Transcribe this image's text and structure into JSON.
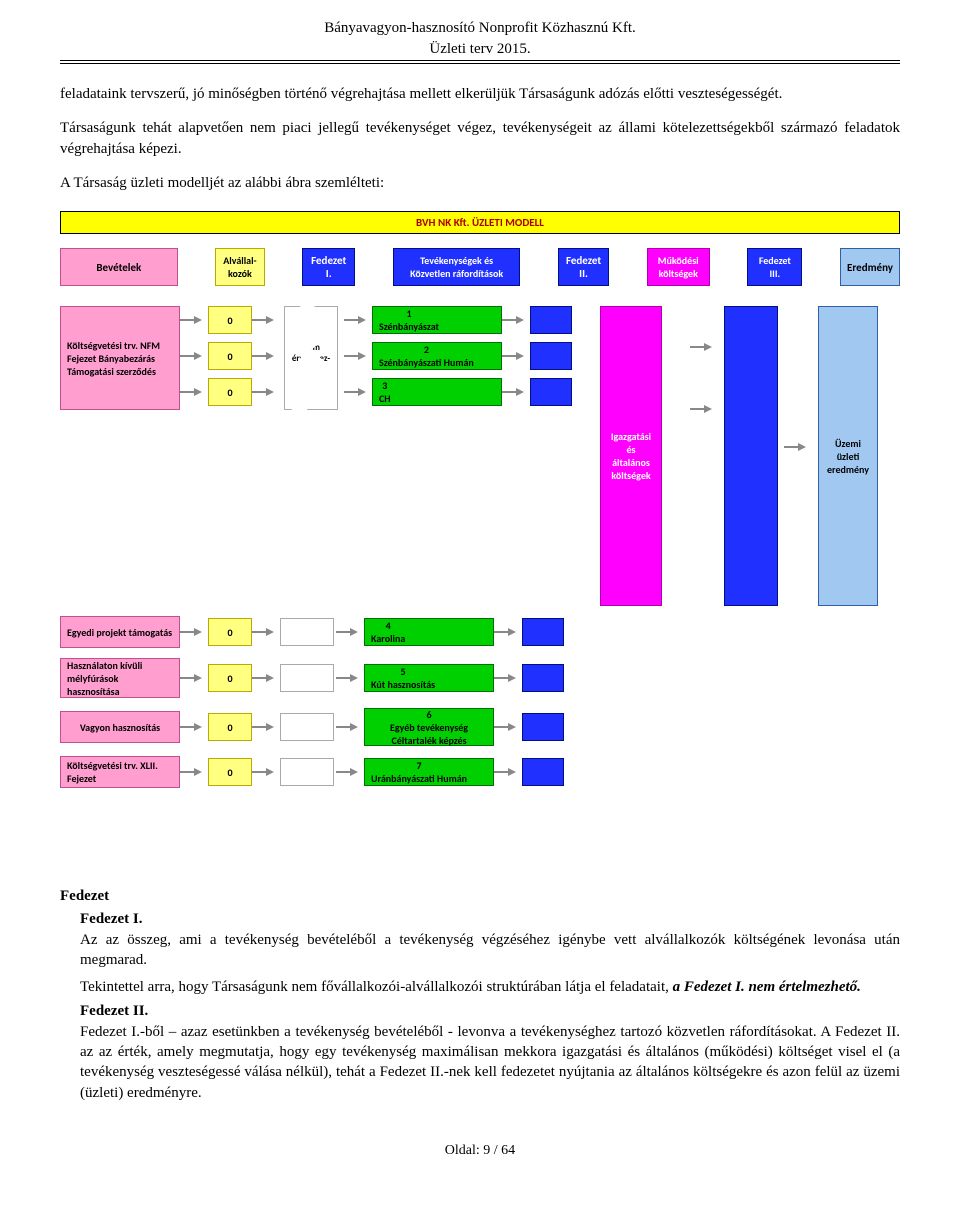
{
  "header": {
    "l1": "Bányavagyon-hasznosító Nonprofit Közhasznú Kft.",
    "l2": "Üzleti terv 2015."
  },
  "para1": "feladataink tervszerű, jó minőségben történő végrehajtása mellett elkerüljük Társaságunk adózás előtti veszteségességét.",
  "para2": "Társaságunk tehát alapvetően nem piaci jellegű tevékenységet végez, tevékenységeit az állami kötelezettségekből származó feladatok végrehajtása képezi.",
  "para3": "A Társaság üzleti modelljét az alábbi ábra szemlélteti:",
  "diagram": {
    "title": "BVH NK Kft. ÜZLETI MODELL",
    "headers": {
      "bev": "Bevételek",
      "av": "Alvállal-kozók",
      "f1": "Fedezet I.",
      "tev": "Tevékenységek és Közvetlen ráfordítások",
      "f2": "Fedezet II.",
      "mk": "Működési költségek",
      "f3": "Fedezet III.",
      "er": "Eredmény"
    },
    "bev": [
      "Költségvetési trv. NFM Fejezet Bányabezárás Támogatási szerződés",
      "Egyedi projekt támogatás",
      "Használaton kívüli mélyfúrások hasznosítása",
      "Vagyon hasznosítás",
      "Költségvetési trv. XLII. Fejezet"
    ],
    "av_vals": [
      "0",
      "0",
      "0",
      "0",
      "0",
      "0",
      "0"
    ],
    "f1_label": "Nem értel-mez-hető",
    "tev": [
      "1\nSzénbányászat",
      "2\nSzénbányászati Humán",
      "3\nCH",
      "4\nKarolina",
      "5\nKút hasznosítás",
      "6\nEgyéb tevékenység Céltartalék képzés",
      "7\nUránbányászati Humán"
    ],
    "mk_label": "Igazgatási és általános költségek",
    "er_label": "Üzemi üzleti eredmény"
  },
  "sec": {
    "h": "Fedezet",
    "f1h": "Fedezet I.",
    "f1": "Az az összeg, ami a tevékenység bevételéből a tevékenység végzéséhez igénybe vett alvállalkozók költségének levonása után megmarad.",
    "f1b": "Tekintettel arra, hogy Társaságunk nem fővállalkozói-alvállalkozói struktúrában látja el feladatait, a Fedezet I. nem értelmezhető.",
    "f2h": "Fedezet II.",
    "f2": "Fedezet I.-ből – azaz esetünkben a tevékenység bevételéből - levonva a tevékenységhez tartozó közvetlen ráfordításokat. A Fedezet II. az az érték, amely megmutatja, hogy egy tevékenység maximálisan mekkora igazgatási és általános (működési) költséget visel el (a tevékenység veszteségessé válása nélkül), tehát a Fedezet II.-nek kell fedezetet nyújtania az általános költségekre és azon felül az üzemi (üzleti) eredményre."
  },
  "footer": "Oldal: 9 / 64"
}
